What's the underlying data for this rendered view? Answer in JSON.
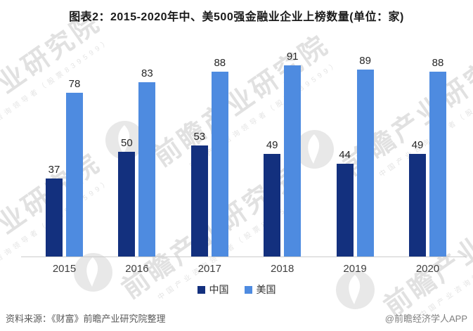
{
  "title": "图表2：2015-2020年中、美500强金融业企业上榜数量(单位：家)",
  "chart_data": {
    "type": "bar",
    "categories": [
      "2015",
      "2016",
      "2017",
      "2018",
      "2019",
      "2020"
    ],
    "series": [
      {
        "name": "中国",
        "color": "#13307E",
        "values": [
          37,
          50,
          53,
          49,
          44,
          49
        ]
      },
      {
        "name": "美国",
        "color": "#4E8BE0",
        "values": [
          78,
          83,
          88,
          91,
          89,
          88
        ]
      }
    ],
    "title": "图表2：2015-2020年中、美500强金融业企业上榜数量(单位：家)",
    "xlabel": "",
    "ylabel": "",
    "ylim": [
      0,
      95
    ],
    "grid": false,
    "legend_position": "bottom",
    "value_labels": true
  },
  "watermark": {
    "text": "前瞻产业研究院",
    "subtext": "中国产业咨询领导者（股票839599）"
  },
  "footer": {
    "source": "资料来源：《财富》前瞻产业研究院整理",
    "credit": "@前瞻经济学人APP"
  }
}
